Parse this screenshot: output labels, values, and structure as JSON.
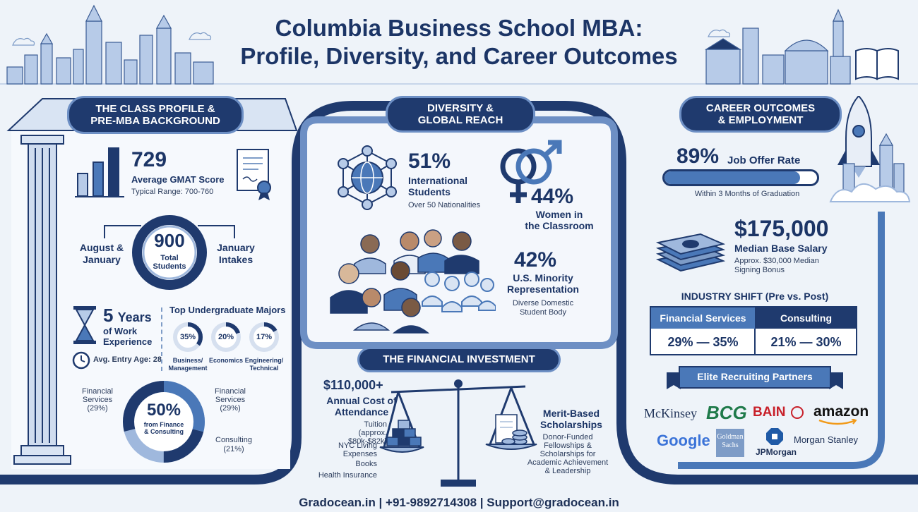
{
  "header": {
    "title_line1": "Columbia Business School MBA:",
    "title_line2": "Profile, Diversity, and Career Outcomes"
  },
  "class_profile": {
    "heading_line1": "THE CLASS PROFILE &",
    "heading_line2": "PRE-MBA BACKGROUND",
    "gmat_value": "729",
    "gmat_label": "Average GMAT Score",
    "gmat_range": "Typical Range: 700-760",
    "students_value": "900",
    "students_label_line1": "Total",
    "students_label_line2": "Students",
    "intake_left_line1": "August &",
    "intake_left_line2": "January",
    "intake_right_line1": "January",
    "intake_right_line2": "Intakes",
    "work_years_value": "5",
    "work_years_unit": "Years",
    "work_label_line1": "of Work",
    "work_label_line2": "Experience",
    "entry_age": "Avg. Entry Age: 28",
    "majors_heading": "Top Undergraduate Majors",
    "majors": [
      {
        "percent": "35%",
        "label_line1": "Business/",
        "label_line2": "Management"
      },
      {
        "percent": "20%",
        "label_line1": "Economics",
        "label_line2": ""
      },
      {
        "percent": "17%",
        "label_line1": "Engineering/",
        "label_line2": "Technical"
      }
    ],
    "finance_value": "50%",
    "finance_label_line1": "from Finance",
    "finance_label_line2": "& Consulting",
    "donut_left_line1": "Financial",
    "donut_left_line2": "Services",
    "donut_left_line3": "(29%)",
    "donut_right_line1": "Financial",
    "donut_right_line2": "Services",
    "donut_right_line3": "(29%)",
    "donut_bottom_line1": "Consulting",
    "donut_bottom_line2": "(21%)"
  },
  "diversity": {
    "heading_line1": "DIVERSITY &",
    "heading_line2": "GLOBAL REACH",
    "intl_value": "51%",
    "intl_label_line1": "International",
    "intl_label_line2": "Students",
    "intl_sub": "Over 50 Nationalities",
    "women_value": "44%",
    "women_label_line1": "Women in",
    "women_label_line2": "the Classroom",
    "minority_value": "42%",
    "minority_label_line1": "U.S. Minority",
    "minority_label_line2": "Representation",
    "minority_sub_line1": "Diverse Domestic",
    "minority_sub_line2": "Student Body"
  },
  "financial": {
    "heading": "THE FINANCIAL INVESTMENT",
    "cost_value": "$110,000+",
    "cost_label_line1": "Annual Cost of",
    "cost_label_line2": "Attendance",
    "tuition_line1": "Tuition",
    "tuition_line2": "(approx. $80k-$82k)",
    "living_line1": "NYC Living",
    "living_line2": "Expenses",
    "books": "Books",
    "health": "Health Insurance",
    "scholarship_line1": "Merit-Based",
    "scholarship_line2": "Scholarships",
    "scholarship_sub_line1": "Donor-Funded",
    "scholarship_sub_line2": "Fellowships &",
    "scholarship_sub_line3": "Scholarships for",
    "scholarship_sub_line4": "Academic Achievement",
    "scholarship_sub_line5": "& Leadership"
  },
  "career": {
    "heading_line1": "CAREER OUTCOMES",
    "heading_line2": "& EMPLOYMENT",
    "offer_value": "89%",
    "offer_label": "Job Offer Rate",
    "offer_progress": 0.89,
    "offer_sub": "Within 3 Months of Graduation",
    "salary_value": "$175,000",
    "salary_label": "Median Base Salary",
    "bonus_line1": "Approx. $30,000 Median",
    "bonus_line2": "Signing Bonus",
    "industry_heading": "INDUSTRY SHIFT (Pre vs. Post)",
    "industry_col1": "Financial Services",
    "industry_col2": "Consulting",
    "industry_val1": "29% — 35%",
    "industry_val2": "21% — 30%",
    "partners_heading": "Elite Recruiting Partners",
    "partners": {
      "mckinsey": "McKinsey",
      "bcg": "BCG",
      "bain": "BAIN",
      "amazon": "amazon",
      "google": "Google",
      "goldman_line1": "Goldman",
      "goldman_line2": "Sachs",
      "jpmorgan": "JPMorgan",
      "morgan_stanley": "Morgan Stanley"
    }
  },
  "footer": {
    "text": "Gradocean.in | +91-9892714308 | Support@gradocean.in"
  },
  "colors": {
    "navy": "#1f3a6e",
    "mid_blue": "#4a78b8",
    "light_blue": "#9fb8dd",
    "background": "#eef3f9"
  }
}
